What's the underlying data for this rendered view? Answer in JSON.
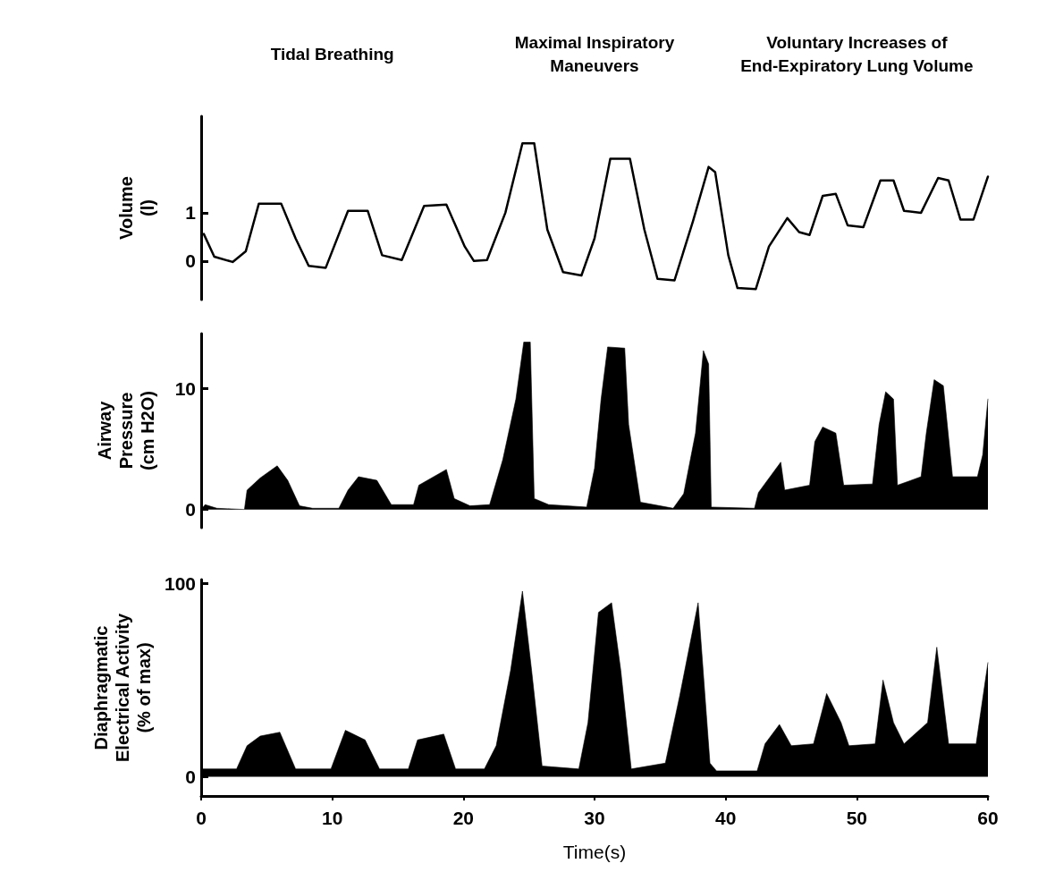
{
  "chart_data": [
    {
      "type": "line",
      "ylabel": "Volume\n(l)",
      "annotations": [
        "Tidal Breathing",
        "Maximal Inspiratory\nManeuvers",
        "Voluntary Increases of\nEnd-Expiratory Lung Volume"
      ],
      "color": "#000000",
      "marker": "none",
      "line_style": "solid",
      "tick_labels": "y",
      "xlim": [
        0,
        60
      ],
      "xticks": [
        0,
        10,
        20,
        30,
        40,
        50,
        60
      ],
      "ylim": [
        -0.8,
        3
      ],
      "yticks": [
        0,
        1
      ],
      "x": [
        0.2,
        1.0,
        2.4,
        3.4,
        4.4,
        6.1,
        7.2,
        8.2,
        9.5,
        11.2,
        12.7,
        13.8,
        15.3,
        17,
        18.7,
        20.1,
        20.8,
        21.8,
        23.2,
        24.5,
        25.4,
        26.4,
        27.6,
        29,
        30,
        31.2,
        32.7,
        33.8,
        34.8,
        36.1,
        37.5,
        38.7,
        39.2,
        40.2,
        40.9,
        42.3,
        43.3,
        44.7,
        45.6,
        46.4,
        47.4,
        48.4,
        49.3,
        50.5,
        51.8,
        52.8,
        53.6,
        54.9,
        56.2,
        57,
        57.9,
        58.9,
        60
      ],
      "values": [
        0.56,
        0.09,
        -0.02,
        0.2,
        1.19,
        1.19,
        0.47,
        -0.1,
        -0.14,
        1.04,
        1.04,
        0.12,
        0.02,
        1.14,
        1.17,
        0.3,
        0,
        0.02,
        1.0,
        2.44,
        2.44,
        0.65,
        -0.23,
        -0.3,
        0.47,
        2.12,
        2.12,
        0.65,
        -0.37,
        -0.4,
        0.82,
        1.95,
        1.84,
        0.12,
        -0.56,
        -0.58,
        0.3,
        0.89,
        0.6,
        0.54,
        1.35,
        1.39,
        0.74,
        0.7,
        1.67,
        1.67,
        1.04,
        1.0,
        1.72,
        1.67,
        0.86,
        0.86,
        1.75
      ]
    },
    {
      "type": "area",
      "ylabel": "Airway\nPressure\n(cm H2O)",
      "color": "#000000",
      "marker": "none",
      "line_style": "solid",
      "tick_labels": "y",
      "xlim": [
        0,
        60
      ],
      "xticks": [
        0,
        10,
        20,
        30,
        40,
        50,
        60
      ],
      "ylim": [
        -1.5,
        14.5
      ],
      "yticks": [
        0,
        10
      ],
      "x": [
        0,
        0.3,
        1.2,
        3.3,
        3.5,
        4.5,
        5.8,
        6.6,
        7.5,
        8.5,
        10.5,
        11.2,
        12,
        13.4,
        14.5,
        16.2,
        16.6,
        18.7,
        19.3,
        20.5,
        22,
        23,
        24,
        24.6,
        25.1,
        25.4,
        26.5,
        29.4,
        30,
        30.5,
        31,
        32.3,
        32.6,
        33.5,
        36,
        36.8,
        37.7,
        38.3,
        38.7,
        38.9,
        42.2,
        42.5,
        44.2,
        44.5,
        46.4,
        46.8,
        47.4,
        48.4,
        49,
        51.2,
        51.7,
        52.2,
        52.8,
        53.1,
        54.9,
        55.3,
        55.9,
        56.6,
        57.3,
        59.2,
        59.6,
        60
      ],
      "values": [
        0,
        0.4,
        0.1,
        0,
        1.6,
        2.6,
        3.6,
        2.4,
        0.3,
        0.1,
        0.1,
        1.6,
        2.7,
        2.4,
        0.4,
        0.4,
        2.0,
        3.3,
        0.9,
        0.3,
        0.4,
        4.1,
        9.1,
        13.8,
        13.8,
        0.9,
        0.4,
        0.2,
        3.4,
        9.1,
        13.4,
        13.3,
        7,
        0.6,
        0.1,
        1.3,
        6.3,
        13.1,
        12,
        0.2,
        0.1,
        1.4,
        3.9,
        1.6,
        2,
        5.6,
        6.8,
        6.3,
        2,
        2.1,
        7,
        9.7,
        9.1,
        2,
        2.7,
        6.3,
        10.7,
        10.2,
        2.7,
        2.7,
        4.5,
        9.1
      ]
    },
    {
      "type": "area",
      "ylabel": "Diaphragmatic\nElectrical Activity\n(% of max)",
      "xlabel": "Time(s)",
      "color": "#000000",
      "marker": "none",
      "line_style": "solid",
      "xlim": [
        0,
        60
      ],
      "xticks": [
        0,
        10,
        20,
        30,
        40,
        50,
        60
      ],
      "ylim": [
        -10,
        102
      ],
      "yticks": [
        0,
        100
      ],
      "x": [
        0,
        2.7,
        3.5,
        4.5,
        6,
        7.2,
        9.9,
        10.5,
        11,
        12.5,
        13.6,
        15.8,
        16.5,
        18.5,
        19.4,
        21.6,
        22.5,
        23.6,
        24.5,
        25.2,
        26,
        28.8,
        29.5,
        30.3,
        31.3,
        32,
        32.8,
        35.4,
        36.5,
        37.9,
        38.8,
        39.3,
        42.4,
        43,
        44.1,
        45,
        46.7,
        47.7,
        48.8,
        49.4,
        51.4,
        52,
        52.8,
        53.6,
        55.4,
        56.1,
        57,
        59.1,
        60
      ],
      "values": [
        4,
        4,
        16,
        21,
        23,
        4,
        4,
        15,
        24,
        19,
        4,
        4,
        19,
        22,
        4,
        4,
        16,
        55,
        96,
        55,
        5.5,
        4,
        28,
        85,
        90,
        55,
        4,
        7,
        42,
        90,
        7,
        3,
        3,
        17,
        27,
        16,
        17,
        43,
        28,
        16,
        17,
        50,
        28,
        17,
        28,
        67,
        17,
        17,
        59
      ]
    }
  ]
}
